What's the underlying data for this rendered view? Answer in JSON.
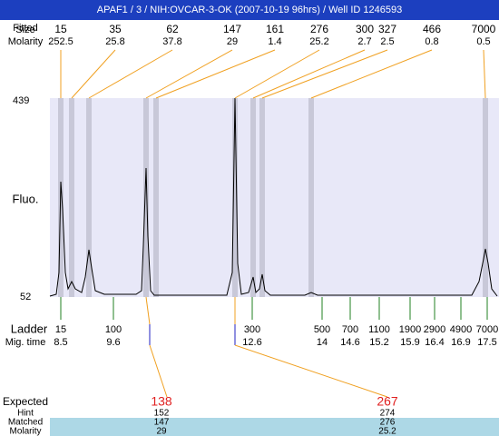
{
  "title": "APAF1 / 3 / NIH:OVCAR-3-OK (2007-10-19 96hrs) / Well ID 1246593",
  "header_labels": {
    "fitted": "Fitted",
    "size": "Size",
    "molarity": "Molarity"
  },
  "peaks": [
    {
      "size": 15,
      "molarity": 252.5
    },
    {
      "size": 35,
      "molarity": 25.8
    },
    {
      "size": 62,
      "molarity": 37.8
    },
    {
      "size": 147,
      "molarity": 29
    },
    {
      "size": 161,
      "molarity": 1.4
    },
    {
      "size": 276,
      "molarity": 25.2
    },
    {
      "size": 300,
      "molarity": 2.7
    },
    {
      "size": 327,
      "molarity": 2.5
    },
    {
      "size": 466,
      "molarity": 0.8
    },
    {
      "size": 7000,
      "molarity": 0.5
    }
  ],
  "y_axis": {
    "label": "Fluo.",
    "max": 439,
    "min": 52
  },
  "ladder": {
    "label": "Ladder",
    "mig_label": "Mig. time",
    "items": [
      {
        "size": 15,
        "time": 8.5
      },
      {
        "size": 100,
        "time": 9.6
      },
      {
        "size": 300,
        "time": 12.6
      },
      {
        "size": 500,
        "time": 14
      },
      {
        "size": 700,
        "time": 14.6
      },
      {
        "size": 1100,
        "time": 15.2
      },
      {
        "size": 1900,
        "time": 15.9
      },
      {
        "size": 2900,
        "time": 16.4
      },
      {
        "size": 4900,
        "time": 16.9
      },
      {
        "size": 7000,
        "time": 17.5
      }
    ]
  },
  "expected": {
    "labels": {
      "expected": "Expected",
      "hint": "Hint",
      "matched": "Matched",
      "molarity": "Molarity"
    },
    "items": [
      {
        "expected": 138,
        "hint": 152,
        "matched": 147,
        "molarity": 29
      },
      {
        "expected": 267,
        "hint": 274,
        "matched": 276,
        "molarity": 25.2
      }
    ]
  }
}
